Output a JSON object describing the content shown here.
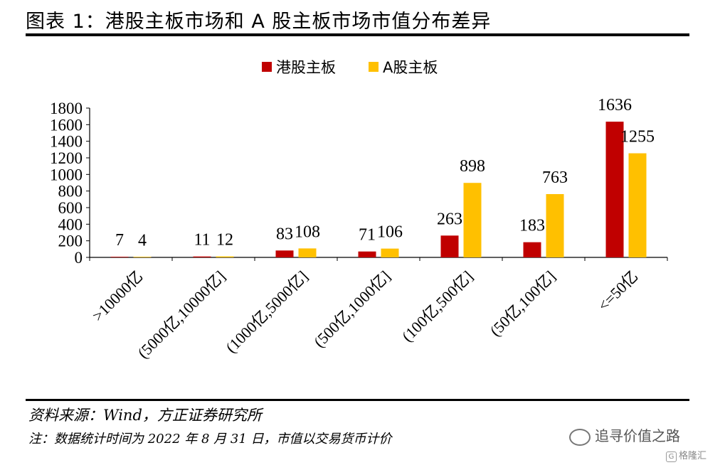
{
  "header": {
    "title": "图表 1：港股主板市场和 A 股主板市场市值分布差异"
  },
  "footer": {
    "source": "资料来源：Wind，方正证券研究所",
    "note": "注：数据统计时间为 2022 年 8 月 31 日，市值以交易货币计价"
  },
  "watermark": {
    "wechat": "追寻价值之路",
    "brand": "格隆汇"
  },
  "colors": {
    "hk": "#C00000",
    "a": "#FFC000",
    "axis": "#000000"
  },
  "chart_data": {
    "type": "bar",
    "title": "",
    "xlabel": "",
    "ylabel": "",
    "ylim": [
      0,
      1800
    ],
    "yticks": [
      0,
      200,
      400,
      600,
      800,
      1000,
      1200,
      1400,
      1600,
      1800
    ],
    "grid": false,
    "legend": "top-center",
    "categories": [
      ">10000亿",
      "(5000亿,10000亿]",
      "(1000亿,5000亿]",
      "(500亿,1000亿]",
      "(100亿,500亿]",
      "(50亿,100亿]",
      "<=50亿"
    ],
    "series": [
      {
        "name": "港股主板",
        "values": [
          7,
          11,
          83,
          71,
          263,
          183,
          1636
        ]
      },
      {
        "name": "A股主板",
        "values": [
          4,
          12,
          108,
          106,
          898,
          763,
          1255
        ]
      }
    ]
  }
}
